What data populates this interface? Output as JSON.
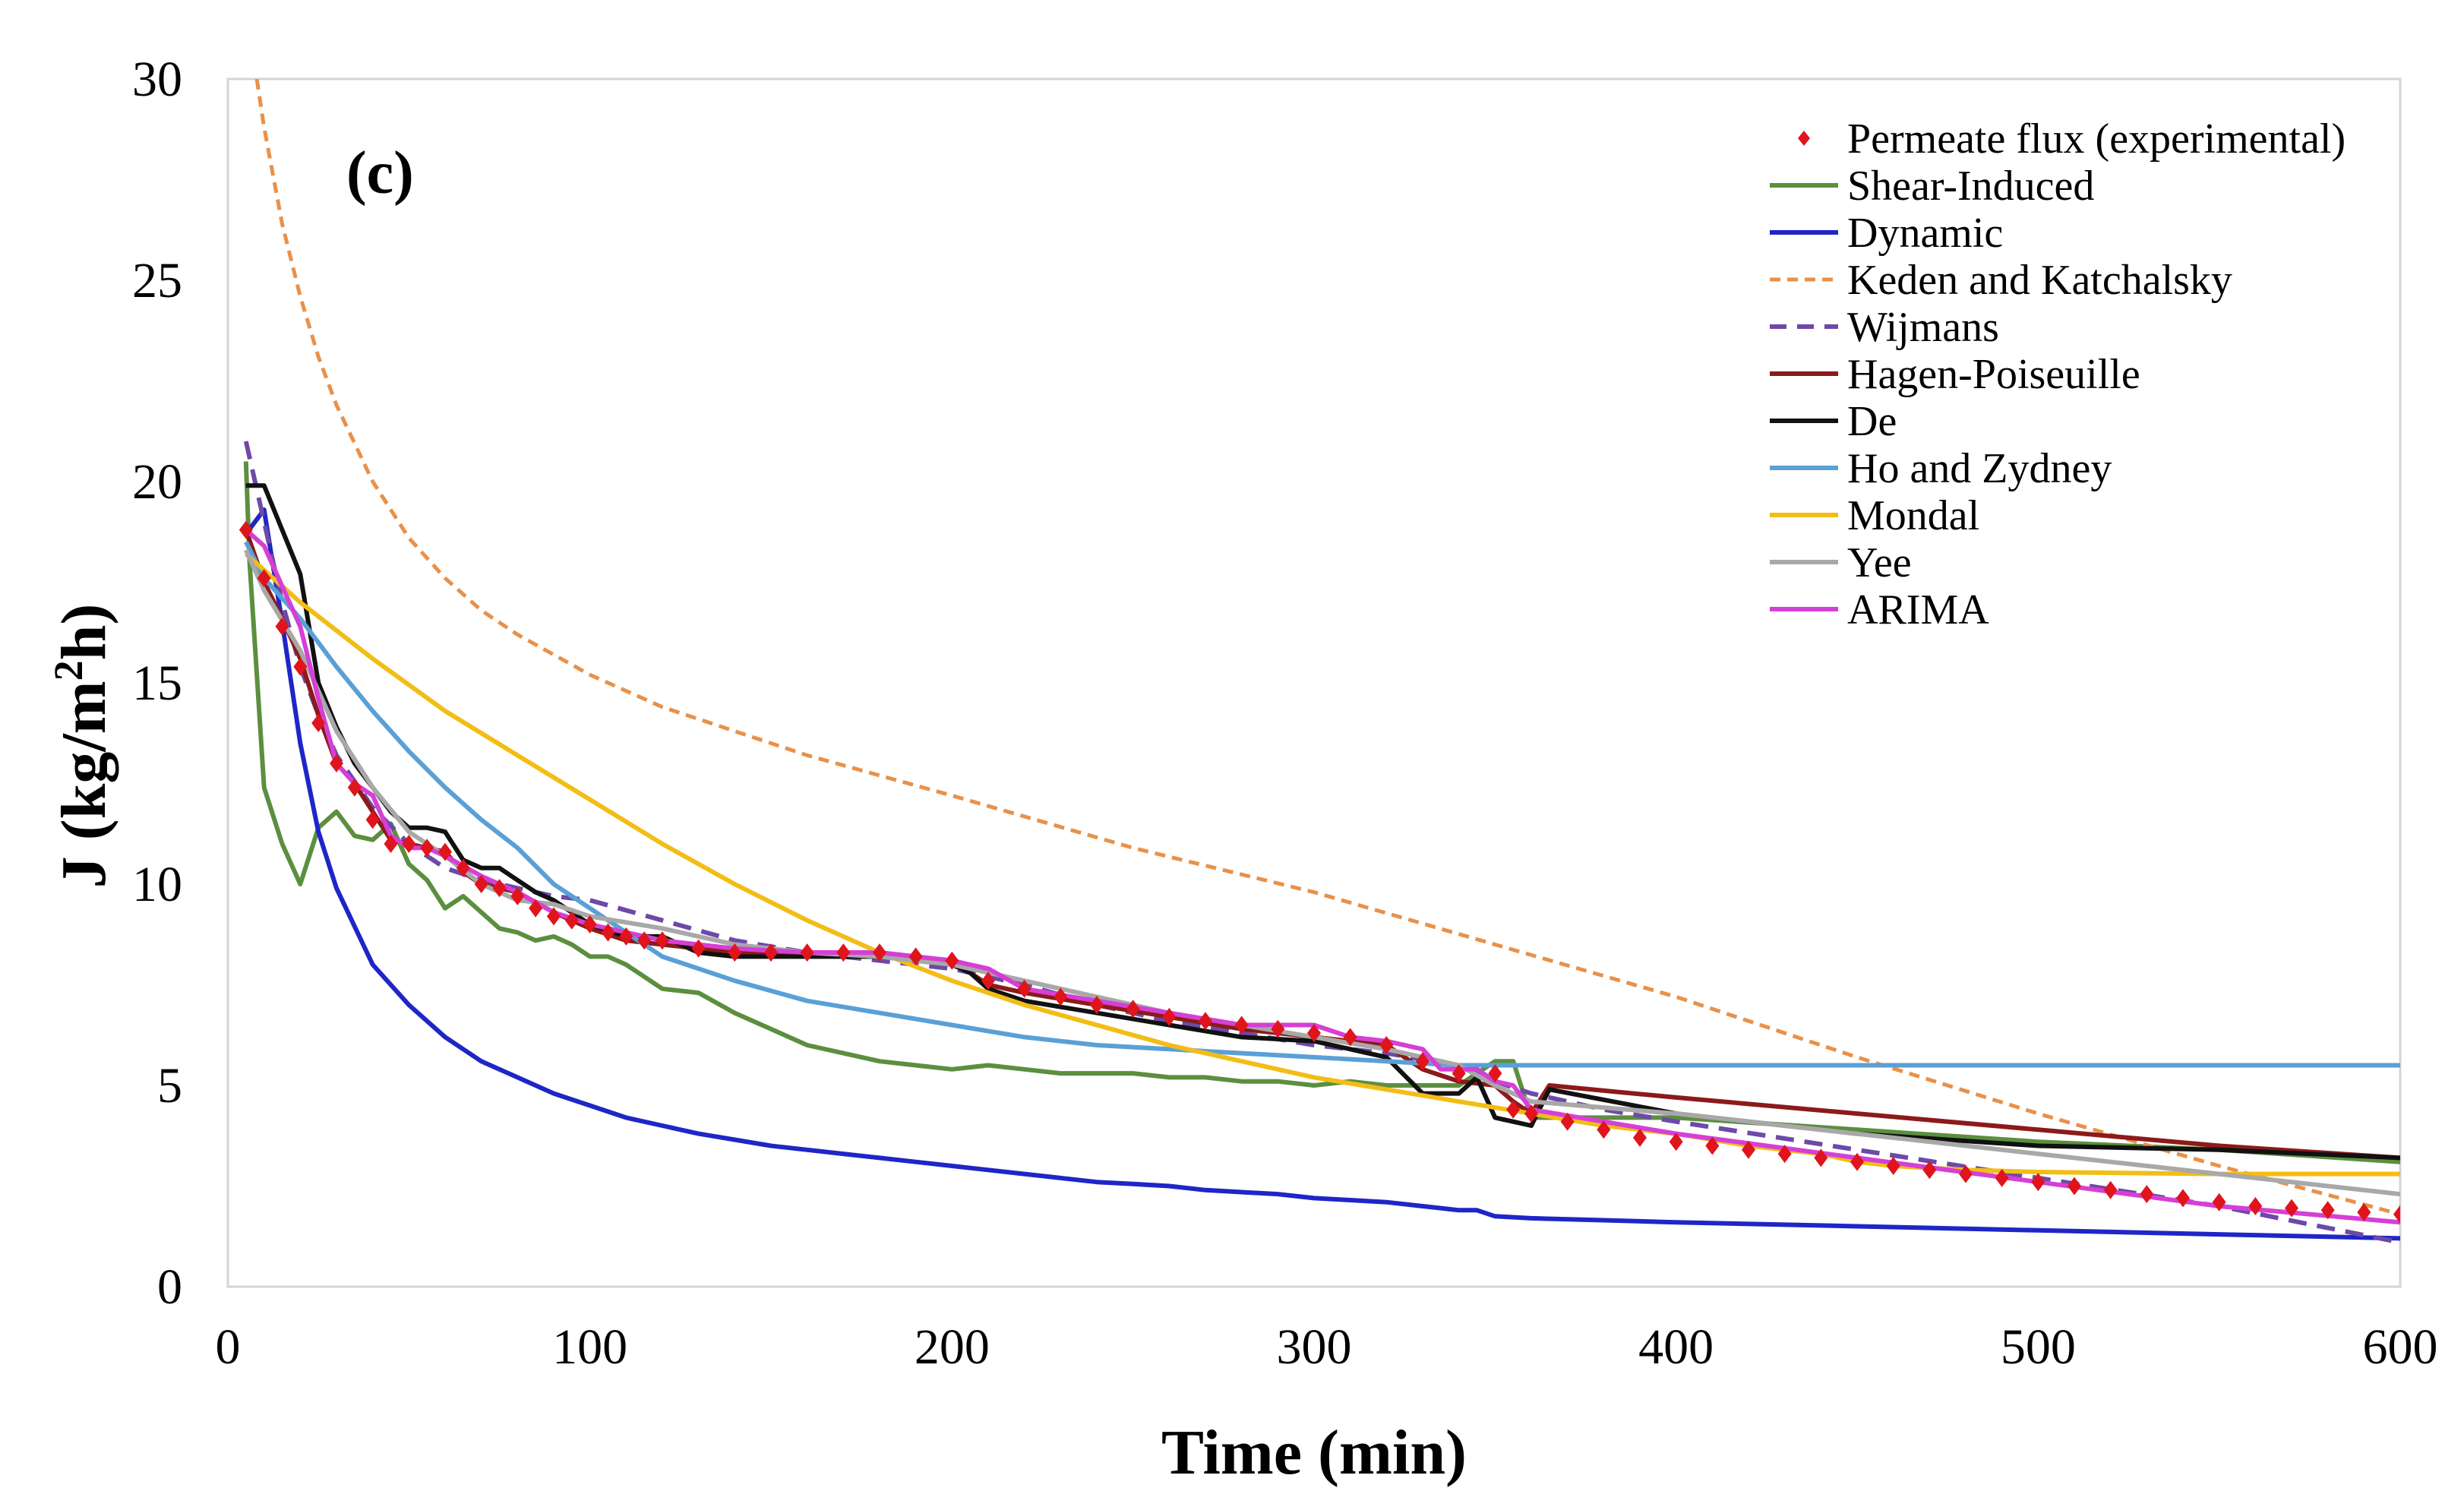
{
  "chart_data": {
    "type": "line",
    "panel_label": "(c)",
    "xlabel": "Time (min)",
    "ylabel_main": "J (kg/m",
    "ylabel_sup": "2",
    "ylabel_tail": "h)",
    "xlim": [
      0,
      600
    ],
    "ylim": [
      0,
      30
    ],
    "xticks": [
      0,
      100,
      200,
      300,
      400,
      500,
      600
    ],
    "yticks": [
      0,
      5,
      10,
      15,
      20,
      25,
      30
    ],
    "xtick_labels": [
      "0",
      "100",
      "200",
      "300",
      "400",
      "500",
      "600"
    ],
    "ytick_labels": [
      "0",
      "5",
      "10",
      "15",
      "20",
      "25",
      "30"
    ],
    "legend_position": "top-right",
    "series": [
      {
        "name": "Permeate flux (experimental)",
        "style": "markers",
        "color": "#e0141c",
        "x": [
          5,
          10,
          15,
          20,
          25,
          30,
          35,
          40,
          45,
          50,
          55,
          60,
          65,
          70,
          75,
          80,
          85,
          90,
          95,
          100,
          105,
          110,
          115,
          120,
          130,
          140,
          150,
          160,
          170,
          180,
          190,
          200,
          210,
          220,
          230,
          240,
          250,
          260,
          270,
          280,
          290,
          300,
          310,
          320,
          330,
          340,
          350,
          355,
          360,
          370,
          380,
          390,
          400,
          410,
          420,
          430,
          440,
          450,
          460,
          470,
          480,
          490,
          500,
          510,
          520,
          530,
          540,
          550,
          560,
          570,
          580,
          590,
          600
        ],
        "y": [
          18.8,
          17.6,
          16.4,
          15.4,
          14.0,
          13.0,
          12.4,
          11.6,
          11.0,
          11.0,
          10.9,
          10.8,
          10.4,
          10.0,
          9.9,
          9.7,
          9.4,
          9.2,
          9.1,
          9.0,
          8.8,
          8.7,
          8.6,
          8.6,
          8.4,
          8.3,
          8.3,
          8.3,
          8.3,
          8.3,
          8.2,
          8.1,
          7.6,
          7.4,
          7.2,
          7.0,
          6.9,
          6.7,
          6.6,
          6.5,
          6.4,
          6.3,
          6.2,
          6.0,
          5.6,
          5.3,
          5.3,
          4.4,
          4.3,
          4.1,
          3.9,
          3.7,
          3.6,
          3.5,
          3.4,
          3.3,
          3.2,
          3.1,
          3.0,
          2.9,
          2.8,
          2.7,
          2.6,
          2.5,
          2.4,
          2.3,
          2.2,
          2.1,
          2.0,
          1.95,
          1.9,
          1.85,
          1.8
        ]
      },
      {
        "name": "Shear-Induced",
        "style": "solid",
        "color": "#5b8f3f",
        "x": [
          5,
          6,
          10,
          15,
          20,
          25,
          30,
          35,
          40,
          45,
          50,
          55,
          60,
          65,
          70,
          75,
          80,
          85,
          90,
          95,
          100,
          105,
          110,
          115,
          120,
          130,
          140,
          150,
          160,
          170,
          180,
          190,
          200,
          210,
          220,
          230,
          240,
          250,
          260,
          270,
          280,
          290,
          300,
          310,
          320,
          330,
          340,
          345,
          350,
          355,
          360,
          400,
          450,
          500,
          550,
          600
        ],
        "y": [
          20.5,
          18.0,
          12.4,
          11.0,
          10.0,
          11.4,
          11.8,
          11.2,
          11.1,
          11.5,
          10.5,
          10.1,
          9.4,
          9.7,
          9.3,
          8.9,
          8.8,
          8.6,
          8.7,
          8.5,
          8.2,
          8.2,
          8.0,
          7.7,
          7.4,
          7.3,
          6.8,
          6.4,
          6.0,
          5.8,
          5.6,
          5.5,
          5.4,
          5.5,
          5.4,
          5.3,
          5.3,
          5.3,
          5.2,
          5.2,
          5.1,
          5.1,
          5.0,
          5.1,
          5.0,
          5.0,
          5.0,
          5.3,
          5.6,
          5.6,
          4.2,
          4.2,
          3.9,
          3.6,
          3.4,
          3.1
        ]
      },
      {
        "name": "Dynamic",
        "style": "solid",
        "color": "#1f26c7",
        "x": [
          5,
          10,
          15,
          20,
          25,
          30,
          40,
          50,
          60,
          70,
          80,
          90,
          100,
          110,
          120,
          130,
          140,
          150,
          160,
          170,
          180,
          190,
          200,
          210,
          220,
          230,
          240,
          250,
          260,
          270,
          280,
          290,
          300,
          310,
          320,
          330,
          340,
          345,
          350,
          360,
          380,
          400,
          450,
          500,
          550,
          600
        ],
        "y": [
          18.7,
          19.3,
          16.5,
          13.5,
          11.3,
          9.9,
          8.0,
          7.0,
          6.2,
          5.6,
          5.2,
          4.8,
          4.5,
          4.2,
          4.0,
          3.8,
          3.65,
          3.5,
          3.4,
          3.3,
          3.2,
          3.1,
          3.0,
          2.9,
          2.8,
          2.7,
          2.6,
          2.55,
          2.5,
          2.4,
          2.35,
          2.3,
          2.2,
          2.15,
          2.1,
          2.0,
          1.9,
          1.9,
          1.75,
          1.7,
          1.65,
          1.6,
          1.5,
          1.4,
          1.3,
          1.2
        ]
      },
      {
        "name": "Keden and Katchalsky",
        "style": "dashed-fine",
        "color": "#e8914a",
        "x": [
          8,
          10,
          15,
          20,
          25,
          30,
          40,
          50,
          60,
          70,
          80,
          90,
          100,
          120,
          140,
          160,
          180,
          200,
          250,
          300,
          350,
          400,
          450,
          500,
          550,
          600
        ],
        "y": [
          30.0,
          28.8,
          26.4,
          24.6,
          23.1,
          21.9,
          20.0,
          18.6,
          17.6,
          16.8,
          16.2,
          15.7,
          15.2,
          14.4,
          13.8,
          13.2,
          12.7,
          12.2,
          10.9,
          9.8,
          8.5,
          7.2,
          5.7,
          4.3,
          3.0,
          1.8
        ]
      },
      {
        "name": "Wijmans",
        "style": "dashed",
        "color": "#6d49a8",
        "x": [
          5,
          10,
          15,
          20,
          25,
          30,
          40,
          50,
          60,
          70,
          80,
          90,
          100,
          120,
          140,
          160,
          180,
          200,
          220,
          240,
          260,
          280,
          300,
          320,
          340,
          350,
          360,
          380,
          400,
          450,
          500,
          550,
          600
        ],
        "y": [
          21.0,
          19.0,
          17.0,
          15.4,
          14.2,
          13.2,
          11.9,
          11.0,
          10.4,
          10.1,
          9.9,
          9.7,
          9.6,
          9.1,
          8.6,
          8.3,
          8.1,
          7.9,
          7.5,
          7.0,
          6.6,
          6.3,
          6.0,
          5.8,
          5.5,
          5.1,
          4.8,
          4.4,
          4.1,
          3.4,
          2.7,
          2.0,
          1.1
        ]
      },
      {
        "name": "Hagen-Poiseuille",
        "style": "solid",
        "color": "#8c1a1a",
        "x": [
          5,
          10,
          15,
          20,
          25,
          30,
          35,
          40,
          45,
          50,
          55,
          60,
          65,
          70,
          80,
          90,
          100,
          110,
          120,
          140,
          160,
          180,
          200,
          210,
          220,
          240,
          260,
          280,
          300,
          320,
          330,
          340,
          350,
          355,
          360,
          365,
          400,
          450,
          500,
          550,
          600
        ],
        "y": [
          18.8,
          17.5,
          16.6,
          15.6,
          14.2,
          13.0,
          12.5,
          11.8,
          11.1,
          11.0,
          10.9,
          10.8,
          10.3,
          10.0,
          9.8,
          9.3,
          8.9,
          8.6,
          8.5,
          8.3,
          8.3,
          8.3,
          8.1,
          7.5,
          7.3,
          7.0,
          6.7,
          6.4,
          6.2,
          6.0,
          5.4,
          5.1,
          5.0,
          4.6,
          4.3,
          5.0,
          4.7,
          4.3,
          3.9,
          3.5,
          3.2
        ]
      },
      {
        "name": "De",
        "style": "solid",
        "color": "#111111",
        "x": [
          5,
          10,
          15,
          20,
          25,
          30,
          35,
          40,
          45,
          50,
          55,
          60,
          65,
          70,
          75,
          80,
          85,
          90,
          95,
          100,
          110,
          120,
          130,
          140,
          160,
          180,
          200,
          205,
          210,
          220,
          240,
          260,
          280,
          300,
          320,
          330,
          340,
          345,
          350,
          355,
          360,
          365,
          400,
          450,
          500,
          550,
          600
        ],
        "y": [
          19.9,
          19.9,
          18.8,
          17.7,
          15.0,
          13.9,
          13.0,
          12.4,
          11.8,
          11.4,
          11.4,
          11.3,
          10.6,
          10.4,
          10.4,
          10.1,
          9.8,
          9.6,
          9.3,
          9.0,
          8.7,
          8.7,
          8.3,
          8.2,
          8.2,
          8.2,
          8.0,
          7.8,
          7.4,
          7.1,
          6.8,
          6.5,
          6.2,
          6.1,
          5.7,
          4.8,
          4.8,
          5.2,
          4.2,
          4.1,
          4.0,
          4.9,
          4.3,
          3.8,
          3.5,
          3.4,
          3.2
        ]
      },
      {
        "name": "Ho and Zydney",
        "style": "solid",
        "color": "#5aa0d6",
        "x": [
          5,
          10,
          20,
          30,
          40,
          50,
          60,
          70,
          80,
          90,
          100,
          120,
          140,
          160,
          180,
          200,
          220,
          240,
          260,
          280,
          300,
          320,
          340,
          350,
          360,
          400,
          450,
          500,
          550,
          600
        ],
        "y": [
          18.5,
          17.6,
          16.6,
          15.4,
          14.3,
          13.3,
          12.4,
          11.6,
          10.9,
          10.0,
          9.4,
          8.2,
          7.6,
          7.1,
          6.8,
          6.5,
          6.2,
          6.0,
          5.9,
          5.8,
          5.7,
          5.6,
          5.5,
          5.5,
          5.5,
          5.5,
          5.5,
          5.5,
          5.5,
          5.5
        ]
      },
      {
        "name": "Mondal",
        "style": "solid",
        "color": "#f2bd16",
        "x": [
          5,
          20,
          40,
          60,
          80,
          100,
          120,
          140,
          160,
          180,
          200,
          220,
          240,
          260,
          280,
          300,
          320,
          340,
          360,
          380,
          400,
          420,
          440,
          450,
          460,
          480,
          500,
          550,
          600
        ],
        "y": [
          18.2,
          17.0,
          15.6,
          14.3,
          13.2,
          12.1,
          11.0,
          10.0,
          9.1,
          8.3,
          7.6,
          7.0,
          6.5,
          6.0,
          5.6,
          5.2,
          4.9,
          4.6,
          4.3,
          4.0,
          3.8,
          3.5,
          3.3,
          3.1,
          3.0,
          2.9,
          2.85,
          2.8,
          2.8
        ]
      },
      {
        "name": "Yee",
        "style": "solid",
        "color": "#a8a8a8",
        "x": [
          5,
          10,
          20,
          30,
          40,
          50,
          60,
          70,
          80,
          90,
          100,
          120,
          140,
          160,
          180,
          200,
          220,
          240,
          260,
          280,
          300,
          320,
          340,
          350,
          360,
          400,
          450,
          500,
          550,
          600
        ],
        "y": [
          18.3,
          17.3,
          15.8,
          13.8,
          12.4,
          11.3,
          10.7,
          10.0,
          9.6,
          9.5,
          9.2,
          8.9,
          8.5,
          8.3,
          8.2,
          8.0,
          7.6,
          7.2,
          6.8,
          6.5,
          6.2,
          5.9,
          5.5,
          5.0,
          4.6,
          4.3,
          3.8,
          3.3,
          2.8,
          2.3
        ]
      },
      {
        "name": "ARIMA",
        "style": "solid",
        "color": "#d63fd6",
        "x": [
          5,
          10,
          15,
          20,
          25,
          30,
          35,
          40,
          45,
          50,
          55,
          60,
          70,
          80,
          90,
          100,
          110,
          120,
          140,
          160,
          180,
          200,
          210,
          220,
          240,
          260,
          280,
          300,
          310,
          320,
          330,
          335,
          340,
          345,
          350,
          355,
          360,
          380,
          400,
          450,
          500,
          550,
          600
        ],
        "y": [
          18.8,
          18.4,
          17.4,
          16.4,
          14.6,
          13.0,
          12.5,
          12.2,
          11.2,
          10.9,
          10.9,
          10.7,
          10.2,
          9.8,
          9.3,
          9.0,
          8.8,
          8.6,
          8.4,
          8.3,
          8.3,
          8.1,
          7.9,
          7.4,
          7.1,
          6.8,
          6.5,
          6.5,
          6.2,
          6.1,
          5.9,
          5.4,
          5.4,
          5.4,
          5.1,
          5.0,
          4.4,
          4.1,
          3.8,
          3.2,
          2.6,
          2.0,
          1.6
        ]
      }
    ]
  }
}
